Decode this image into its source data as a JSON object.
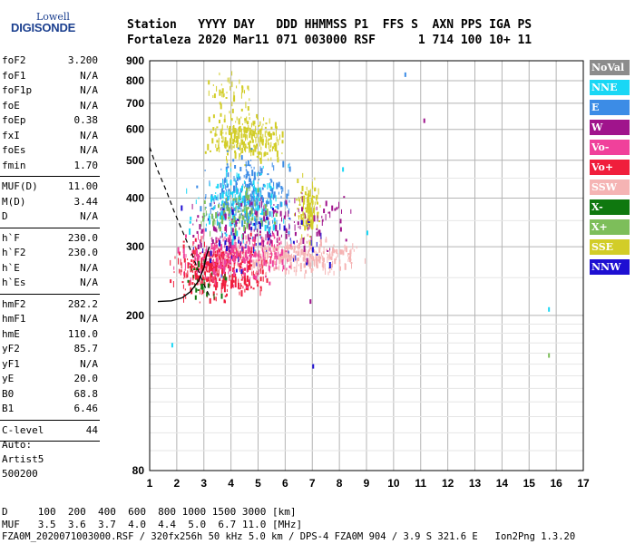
{
  "logo": {
    "line1": "Lowell",
    "line2": "DIGISONDE"
  },
  "header": {
    "row1": "Station   YYYY DAY   DDD HHMMSS P1  FFS S  AXN PPS IGA PS",
    "row2": "Fortaleza 2020 Mar11 071 003000 RSF      1 714 100 10+ 11"
  },
  "params": [
    {
      "group": [
        {
          "name": "foF2",
          "value": "3.200"
        },
        {
          "name": "foF1",
          "value": "N/A"
        },
        {
          "name": "foF1p",
          "value": "N/A"
        },
        {
          "name": "foE",
          "value": "N/A"
        },
        {
          "name": "foEp",
          "value": "0.38"
        },
        {
          "name": "fxI",
          "value": "N/A"
        },
        {
          "name": "foEs",
          "value": "N/A"
        },
        {
          "name": "fmin",
          "value": "1.70"
        }
      ]
    },
    {
      "group": [
        {
          "name": "MUF(D)",
          "value": "11.00"
        },
        {
          "name": "M(D)",
          "value": "3.44"
        },
        {
          "name": "D",
          "value": "N/A"
        }
      ]
    },
    {
      "group": [
        {
          "name": "h`F",
          "value": "230.0"
        },
        {
          "name": "h`F2",
          "value": "230.0"
        },
        {
          "name": "h`E",
          "value": "N/A"
        },
        {
          "name": "h`Es",
          "value": "N/A"
        }
      ]
    },
    {
      "group": [
        {
          "name": "hmF2",
          "value": "282.2"
        },
        {
          "name": "hmF1",
          "value": "N/A"
        },
        {
          "name": "hmE",
          "value": "110.0"
        },
        {
          "name": "yF2",
          "value": "85.7"
        },
        {
          "name": "yF1",
          "value": "N/A"
        },
        {
          "name": "yE",
          "value": "20.0"
        },
        {
          "name": "B0",
          "value": "68.8"
        },
        {
          "name": "B1",
          "value": "6.46"
        }
      ]
    },
    {
      "group": [
        {
          "name": "C-level",
          "value": "44"
        }
      ]
    }
  ],
  "auto": {
    "line1": "Auto:",
    "line2": "Artist5",
    "line3": "500200"
  },
  "legend": [
    {
      "label": "NoVal",
      "color": "#8c8c8c"
    },
    {
      "label": "NNE",
      "color": "#19d7f5"
    },
    {
      "label": "E",
      "color": "#3c8ce6"
    },
    {
      "label": "W",
      "color": "#a0148c"
    },
    {
      "label": "Vo-",
      "color": "#f0419b"
    },
    {
      "label": "Vo+",
      "color": "#f01e3c"
    },
    {
      "label": "SSW",
      "color": "#f5b4b4"
    },
    {
      "label": "X-",
      "color": "#0f780f"
    },
    {
      "label": "X+",
      "color": "#7dbe5a"
    },
    {
      "label": "SSE",
      "color": "#d2cd28"
    },
    {
      "label": "NNW",
      "color": "#1e0fd2"
    }
  ],
  "footer": {
    "line1": "D     100  200  400  600  800 1000 1500 3000 [km]",
    "line2": "MUF   3.5  3.6  3.7  4.0  4.4  5.0  6.7 11.0 [MHz]",
    "line3": "FZA0M_2020071003000.RSF / 320fx256h 50 kHz 5.0 km / DPS-4 FZA0M 904 / 3.9 S 321.6 E   Ion2Png 1.3.20"
  },
  "chart_data": {
    "type": "scatter",
    "title": "",
    "xlabel": "",
    "ylabel": "",
    "xlim": [
      1,
      17
    ],
    "ylim": [
      80,
      900
    ],
    "xticks": [
      1,
      2,
      3,
      4,
      5,
      6,
      7,
      8,
      9,
      10,
      11,
      12,
      13,
      14,
      15,
      16,
      17
    ],
    "yticks": [
      80,
      200,
      300,
      400,
      500,
      600,
      700,
      800,
      900
    ],
    "y_scale": "log",
    "grid": true,
    "traces": [
      {
        "name": "fmin",
        "x": 1.0,
        "y_range": [
          80,
          550
        ],
        "style": "dashed"
      }
    ],
    "profile": {
      "x": [
        1.3,
        1.8,
        2.2,
        2.5,
        2.8,
        3.0,
        3.1,
        3.2
      ],
      "y": [
        217,
        218,
        222,
        230,
        245,
        265,
        285,
        300
      ]
    },
    "muf_curve": {
      "style": "dashed",
      "x": [
        1.0,
        1.3,
        1.6,
        1.9,
        2.2,
        2.5,
        2.8,
        3.0,
        3.2
      ],
      "y": [
        540,
        470,
        420,
        370,
        330,
        295,
        260,
        240,
        225
      ]
    },
    "clusters": [
      {
        "series": "SSE",
        "x": [
          3.0,
          6.1
        ],
        "y": [
          480,
          700
        ],
        "n": 260
      },
      {
        "series": "SSE",
        "x": [
          3.0,
          4.8
        ],
        "y": [
          650,
          880
        ],
        "n": 40
      },
      {
        "series": "SSE",
        "x": [
          6.2,
          7.3
        ],
        "y": [
          300,
          480
        ],
        "n": 120
      },
      {
        "series": "SSW",
        "x": [
          2.8,
          9.0
        ],
        "y": [
          250,
          330
        ],
        "n": 420
      },
      {
        "series": "Vo+",
        "x": [
          1.6,
          5.5
        ],
        "y": [
          210,
          330
        ],
        "n": 380
      },
      {
        "series": "Vo-",
        "x": [
          1.8,
          6.5
        ],
        "y": [
          230,
          360
        ],
        "n": 260
      },
      {
        "series": "E",
        "x": [
          2.6,
          6.4
        ],
        "y": [
          300,
          560
        ],
        "n": 300
      },
      {
        "series": "NNE",
        "x": [
          2.3,
          6.2
        ],
        "y": [
          290,
          520
        ],
        "n": 160
      },
      {
        "series": "W",
        "x": [
          2.0,
          8.8
        ],
        "y": [
          270,
          450
        ],
        "n": 170
      },
      {
        "series": "X+",
        "x": [
          2.6,
          6.0
        ],
        "y": [
          300,
          460
        ],
        "n": 90
      },
      {
        "series": "NNW",
        "x": [
          2.0,
          8.0
        ],
        "y": [
          230,
          420
        ],
        "n": 60
      },
      {
        "series": "X-",
        "x": [
          2.0,
          4.0
        ],
        "y": [
          210,
          300
        ],
        "n": 25
      }
    ],
    "outliers": [
      {
        "series": "E",
        "x": 10.4,
        "y": 840
      },
      {
        "series": "W",
        "x": 11.1,
        "y": 640
      },
      {
        "series": "NNE",
        "x": 15.7,
        "y": 210
      },
      {
        "series": "X+",
        "x": 15.7,
        "y": 160
      },
      {
        "series": "NNE",
        "x": 1.8,
        "y": 170
      },
      {
        "series": "NNE",
        "x": 8.1,
        "y": 480
      },
      {
        "series": "NNE",
        "x": 9.0,
        "y": 330
      },
      {
        "series": "NNW",
        "x": 7.0,
        "y": 150
      },
      {
        "series": "W",
        "x": 6.9,
        "y": 220
      }
    ]
  }
}
